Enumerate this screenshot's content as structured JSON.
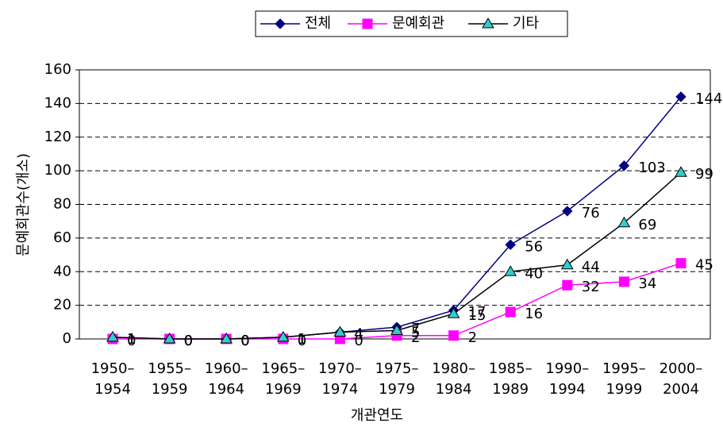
{
  "chart_data": {
    "type": "line",
    "y_label": "문예회관수(개소)",
    "x_label": "개관연도",
    "categories": [
      "1950–1954",
      "1955–1959",
      "1960–1964",
      "1965–1969",
      "1970–1974",
      "1975–1979",
      "1980–1984",
      "1985–1989",
      "1990–1994",
      "1995–1999",
      "2000–2004"
    ],
    "series": [
      {
        "name": "전체",
        "color": "#000080",
        "marker": "diamond",
        "values": [
          1,
          0,
          0,
          1,
          4,
          7,
          17,
          56,
          76,
          103,
          144
        ]
      },
      {
        "name": "문예회관",
        "color": "#ff00ff",
        "marker": "square",
        "values": [
          0,
          0,
          0,
          0,
          0,
          2,
          2,
          16,
          32,
          34,
          45
        ]
      },
      {
        "name": "기타",
        "color": "#000000",
        "marker_fill": "#33cccc",
        "marker": "triangle",
        "values": [
          1,
          0,
          0,
          1,
          4,
          5,
          15,
          40,
          44,
          69,
          99
        ]
      }
    ],
    "ylim": [
      0,
      160
    ],
    "yticks": [
      0,
      20,
      40,
      60,
      80,
      100,
      120,
      140,
      160
    ],
    "grid": true
  }
}
